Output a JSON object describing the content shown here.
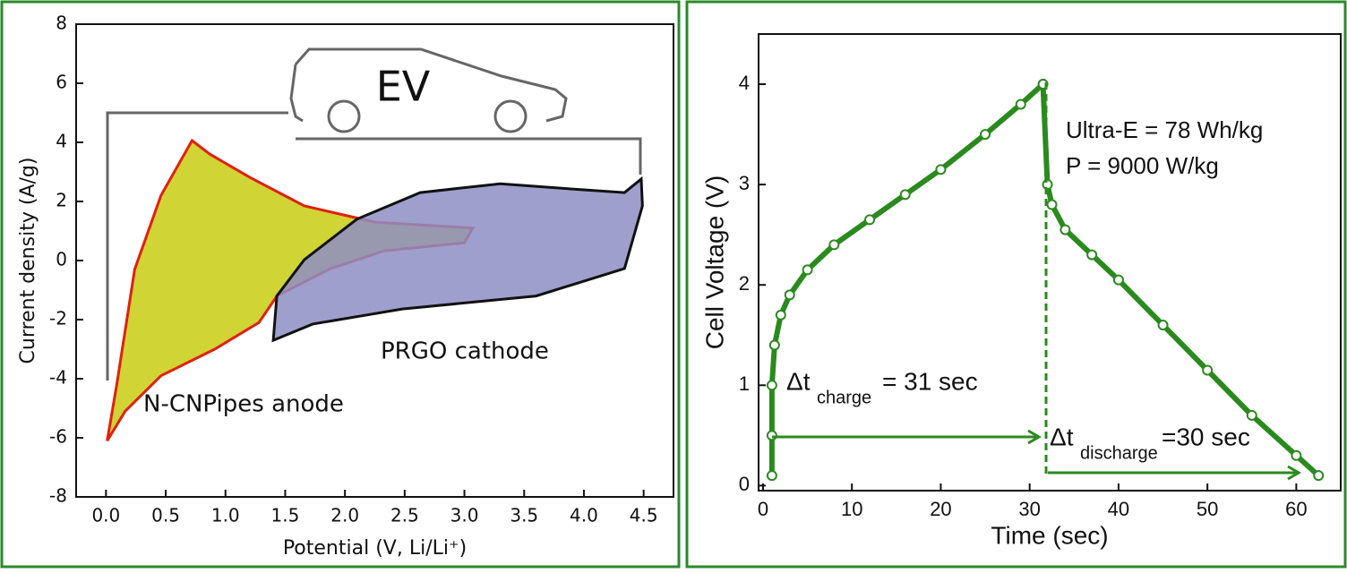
{
  "chart_data": [
    {
      "type": "area",
      "x_label": "Potential (V, Li/Li⁺)",
      "y_label": "Current density (A/g)",
      "annotation": "EV",
      "xlim": [
        -0.25,
        4.75
      ],
      "ylim": [
        -8,
        8
      ],
      "xticks": [
        {
          "value": 0,
          "label": "0.0"
        },
        0.5,
        {
          "value": 1,
          "label": "1.0"
        },
        1.5,
        {
          "value": 2,
          "label": "2.0"
        },
        2.5,
        {
          "value": 3,
          "label": "3.0"
        },
        3.5,
        {
          "value": 4,
          "label": "4.0"
        },
        4.5
      ],
      "yticks": [
        -8,
        -6,
        -4,
        -2,
        0,
        2,
        4,
        6,
        8
      ],
      "series": [
        {
          "name": "N-CNPipes anode",
          "color": "#c8cc10",
          "edge_color": "#e02010",
          "x": [
            0.01,
            0.09,
            0.24,
            0.46,
            0.72,
            0.87,
            1.21,
            1.66,
            2.25,
            3.07,
            3.0,
            2.33,
            1.88,
            1.43,
            1.28,
            0.91,
            0.46,
            0.16
          ],
          "values": [
            -6.1,
            -4.2,
            -0.3,
            2.2,
            4.06,
            3.6,
            2.8,
            1.85,
            1.3,
            1.1,
            0.6,
            0.33,
            -0.27,
            -1.2,
            -2.1,
            -3.0,
            -3.9,
            -5.1
          ]
        },
        {
          "name": "PRGO cathode",
          "color": "#8e8ec4",
          "edge_color": "#111111",
          "x": [
            1.4,
            1.43,
            1.66,
            2.1,
            2.63,
            3.3,
            3.97,
            4.34,
            4.48,
            4.49,
            4.34,
            3.6,
            2.48,
            1.73
          ],
          "values": [
            -2.7,
            -1.2,
            0.03,
            1.4,
            2.3,
            2.6,
            2.4,
            2.3,
            2.76,
            1.85,
            -0.27,
            -1.2,
            -1.64,
            -2.15
          ]
        }
      ]
    },
    {
      "type": "line",
      "x_label": "Time (sec)",
      "y_label": "Cell Voltage (V)",
      "annotations": [
        "Ultra-E = 78 Wh/kg",
        "P = 9000 W/kg"
      ],
      "charge_label": {
        "symbol": "Δt",
        "subscript": "charge",
        "text": "= 31 sec"
      },
      "discharge_label": {
        "symbol": "Δt",
        "subscript": "discharge",
        "text": "=30 sec"
      },
      "xlim": [
        -0.5,
        65
      ],
      "ylim": [
        -0.05,
        4.5
      ],
      "xticks": [
        0,
        10,
        20,
        30,
        40,
        50,
        60
      ],
      "yticks": [
        0,
        1,
        2,
        3,
        4
      ],
      "series": [
        {
          "color": "#2a8a1e",
          "x": [
            1,
            1,
            1,
            1.3,
            2,
            3,
            5,
            8,
            12,
            16,
            20,
            25,
            29,
            31.5,
            32,
            32.5,
            34,
            37,
            40,
            45,
            50,
            55,
            60,
            62.5
          ],
          "values": [
            0.1,
            0.5,
            1.0,
            1.4,
            1.7,
            1.9,
            2.15,
            2.4,
            2.65,
            2.9,
            3.15,
            3.5,
            3.8,
            4.0,
            3.0,
            2.8,
            2.55,
            2.3,
            2.05,
            1.6,
            1.15,
            0.7,
            0.3,
            0.1
          ]
        }
      ]
    }
  ]
}
